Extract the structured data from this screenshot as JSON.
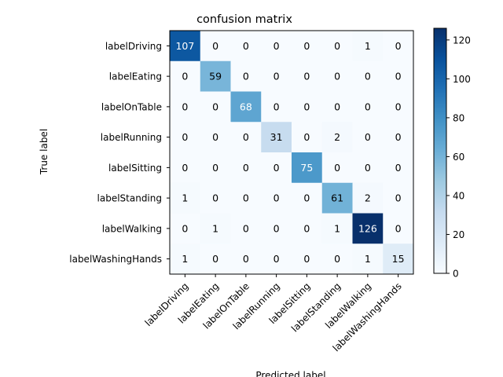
{
  "chart_data": {
    "type": "heatmap",
    "title": "confusion matrix",
    "xlabel": "Predicted label",
    "ylabel": "True label",
    "x_categories": [
      "labelDriving",
      "labelEating",
      "labelOnTable",
      "labelRunning",
      "labelSitting",
      "labelStanding",
      "labelWalking",
      "labelWashingHands"
    ],
    "y_categories": [
      "labelDriving",
      "labelEating",
      "labelOnTable",
      "labelRunning",
      "labelSitting",
      "labelStanding",
      "labelWalking",
      "labelWashingHands"
    ],
    "values": [
      [
        107,
        0,
        0,
        0,
        0,
        0,
        1,
        0
      ],
      [
        0,
        59,
        0,
        0,
        0,
        0,
        0,
        0
      ],
      [
        0,
        0,
        68,
        0,
        0,
        0,
        0,
        0
      ],
      [
        0,
        0,
        0,
        31,
        0,
        2,
        0,
        0
      ],
      [
        0,
        0,
        0,
        0,
        75,
        0,
        0,
        0
      ],
      [
        1,
        0,
        0,
        0,
        0,
        61,
        2,
        0
      ],
      [
        0,
        1,
        0,
        0,
        0,
        1,
        126,
        0
      ],
      [
        1,
        0,
        0,
        0,
        0,
        0,
        1,
        15
      ]
    ],
    "colorbar": {
      "ticks": [
        0,
        20,
        40,
        60,
        80,
        100,
        120
      ],
      "range": [
        0,
        126
      ],
      "colormap": "Blues"
    }
  }
}
